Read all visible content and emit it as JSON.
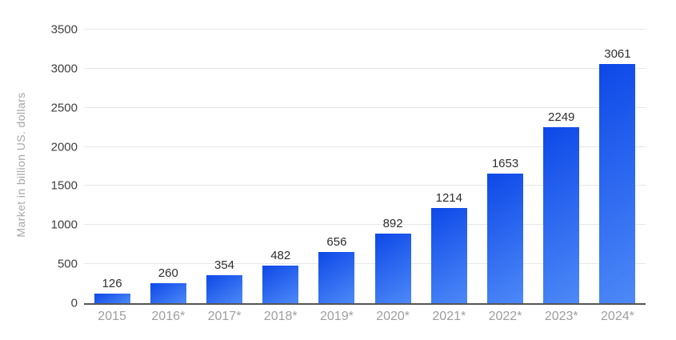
{
  "chart_data": {
    "type": "bar",
    "title": "",
    "xlabel": "",
    "ylabel": "Market in billion US. dollars",
    "categories": [
      "2015",
      "2016*",
      "2017*",
      "2018*",
      "2019*",
      "2020*",
      "2021*",
      "2022*",
      "2023*",
      "2024*"
    ],
    "values": [
      126,
      260,
      354,
      482,
      656,
      892,
      1214,
      1653,
      2249,
      3061
    ],
    "ylim": [
      0,
      3500
    ],
    "yticks": [
      0,
      500,
      1000,
      1500,
      2000,
      2500,
      3000,
      3500
    ],
    "grid": true,
    "legend_position": "none",
    "colors": {
      "bar_gradient_start": "#0d48e8",
      "bar_gradient_end": "#4d89f7",
      "gridline": "#e7e7e7",
      "axis_line": "#555555",
      "y_tick_label": "#3f3f3f",
      "x_tick_label": "#9e9e9e",
      "value_label": "#2e2e2e",
      "y_axis_title": "#a6a6a6",
      "background": "#ffffff"
    }
  }
}
